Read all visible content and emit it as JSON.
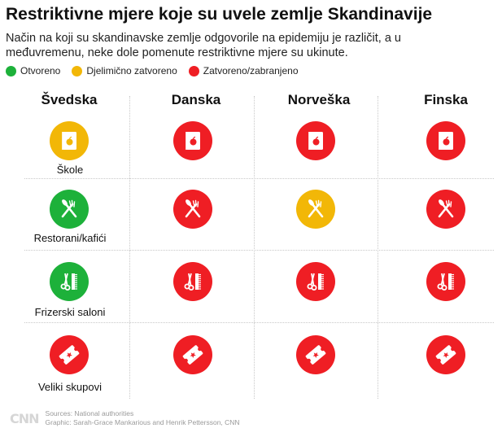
{
  "title": "Restriktivne mjere koje su uvele zemlje Skandinavije",
  "subtitle": "Način na koji su skandinavske zemlje odgovorile na epidemiju je različit, a u međuvremenu, neke dole pomenute  restriktivne mjere su ukinute.",
  "legend": [
    {
      "label": "Otvoreno",
      "status": "open"
    },
    {
      "label": "Djelimično zatvoreno",
      "status": "partial"
    },
    {
      "label": "Zatvoreno/zabranjeno",
      "status": "closed"
    }
  ],
  "colors": {
    "open": "#1db13a",
    "partial": "#f2b707",
    "closed": "#ef1e24",
    "icon_fg": "#ffffff"
  },
  "countries": [
    "Švedska",
    "Danska",
    "Norveška",
    "Finska"
  ],
  "measures": [
    {
      "label": "Škole",
      "icon": "school-icon",
      "statuses": [
        "partial",
        "closed",
        "closed",
        "closed"
      ]
    },
    {
      "label": "Restorani/kafići",
      "icon": "restaurant-icon",
      "statuses": [
        "open",
        "closed",
        "partial",
        "closed"
      ]
    },
    {
      "label": "Frizerski saloni",
      "icon": "hairdresser-icon",
      "statuses": [
        "open",
        "closed",
        "closed",
        "closed"
      ]
    },
    {
      "label": "Veliki skupovi",
      "icon": "ticket-icon",
      "statuses": [
        "closed",
        "closed",
        "closed",
        "closed"
      ]
    }
  ],
  "footer": {
    "logo": "CNN",
    "sources": "Sources: National authorities",
    "graphic": "Graphic: Sarah-Grace Mankarious and Henrik Pettersson, CNN"
  }
}
